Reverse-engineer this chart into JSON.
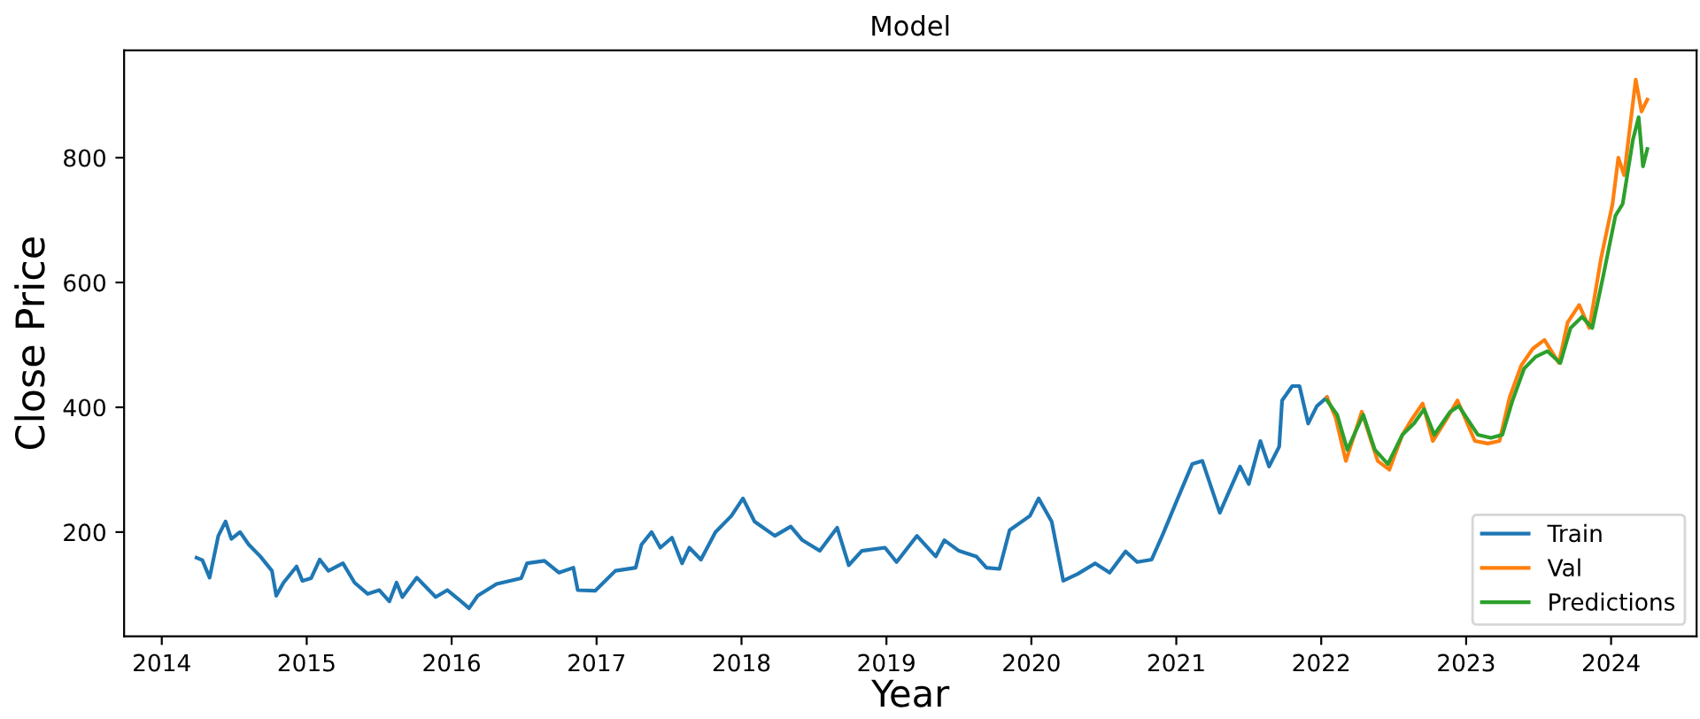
{
  "chart_data": {
    "type": "line",
    "title": "Model",
    "xlabel": "Year",
    "ylabel": "Close Price",
    "xlim": [
      2013.74,
      2024.59
    ],
    "xticks": [
      2014,
      2015,
      2016,
      2017,
      2018,
      2019,
      2020,
      2021,
      2022,
      2023,
      2024
    ],
    "ylim": [
      33,
      972
    ],
    "yticks": [
      200,
      400,
      600,
      800
    ],
    "grid": false,
    "legend": "bottom right",
    "series": [
      {
        "name": "Train",
        "color": "#1f77b4",
        "x": [
          2014.24,
          2014.28,
          2014.33,
          2014.39,
          2014.44,
          2014.48,
          2014.54,
          2014.6,
          2014.68,
          2014.76,
          2014.79,
          2014.84,
          2014.93,
          2014.97,
          2015.03,
          2015.09,
          2015.15,
          2015.25,
          2015.33,
          2015.42,
          2015.5,
          2015.57,
          2015.62,
          2015.66,
          2015.76,
          2015.89,
          2015.97,
          2016.05,
          2016.12,
          2016.18,
          2016.31,
          2016.48,
          2016.52,
          2016.64,
          2016.74,
          2016.84,
          2016.87,
          2016.99,
          2017.13,
          2017.27,
          2017.31,
          2017.38,
          2017.44,
          2017.52,
          2017.59,
          2017.64,
          2017.72,
          2017.82,
          2017.93,
          2018.01,
          2018.09,
          2018.23,
          2018.34,
          2018.42,
          2018.54,
          2018.66,
          2018.74,
          2018.83,
          2018.99,
          2019.07,
          2019.21,
          2019.34,
          2019.4,
          2019.5,
          2019.62,
          2019.69,
          2019.78,
          2019.85,
          2019.99,
          2020.05,
          2020.14,
          2020.22,
          2020.32,
          2020.44,
          2020.54,
          2020.65,
          2020.73,
          2020.83,
          2020.91,
          2021.01,
          2021.11,
          2021.18,
          2021.3,
          2021.44,
          2021.5,
          2021.58,
          2021.64,
          2021.71,
          2021.73,
          2021.8,
          2021.85,
          2021.91,
          2021.97,
          2022.04
        ],
        "values": [
          159,
          155,
          127,
          194,
          217,
          189,
          200,
          180,
          161,
          138,
          98,
          119,
          145,
          122,
          126,
          156,
          138,
          150,
          119,
          101,
          107,
          89,
          119,
          96,
          127,
          96,
          107,
          92,
          78,
          98,
          117,
          126,
          150,
          154,
          135,
          143,
          107,
          106,
          138,
          143,
          180,
          200,
          175,
          191,
          150,
          175,
          156,
          200,
          226,
          254,
          217,
          194,
          209,
          187,
          170,
          207,
          147,
          170,
          175,
          152,
          194,
          161,
          187,
          170,
          161,
          143,
          141,
          203,
          226,
          254,
          217,
          122,
          133,
          150,
          135,
          169,
          152,
          156,
          198,
          254,
          309,
          314,
          231,
          305,
          277,
          346,
          305,
          337,
          411,
          434,
          434,
          374,
          402,
          416
        ]
      },
      {
        "name": "Val",
        "color": "#ff7f0e",
        "x": [
          2022.04,
          2022.1,
          2022.17,
          2022.28,
          2022.35,
          2022.39,
          2022.47,
          2022.56,
          2022.62,
          2022.7,
          2022.77,
          2022.87,
          2022.94,
          2023.06,
          2023.15,
          2023.23,
          2023.3,
          2023.38,
          2023.46,
          2023.54,
          2023.64,
          2023.7,
          2023.78,
          2023.85,
          2023.93,
          2024.01,
          2024.05,
          2024.09,
          2024.17,
          2024.21,
          2024.25
        ],
        "values": [
          416,
          383,
          314,
          393,
          342,
          314,
          300,
          356,
          379,
          406,
          346,
          383,
          411,
          346,
          342,
          346,
          416,
          467,
          494,
          508,
          471,
          536,
          564,
          527,
          638,
          726,
          800,
          772,
          925,
          874,
          893
        ]
      },
      {
        "name": "Predictions",
        "color": "#2ca02c",
        "x": [
          2022.04,
          2022.11,
          2022.18,
          2022.29,
          2022.37,
          2022.46,
          2022.56,
          2022.64,
          2022.71,
          2022.78,
          2022.89,
          2022.95,
          2023.08,
          2023.17,
          2023.25,
          2023.32,
          2023.4,
          2023.48,
          2023.56,
          2023.65,
          2023.72,
          2023.8,
          2023.87,
          2023.95,
          2024.03,
          2024.08,
          2024.15,
          2024.19,
          2024.22,
          2024.25
        ],
        "values": [
          411,
          388,
          332,
          388,
          332,
          309,
          356,
          374,
          397,
          356,
          393,
          402,
          356,
          351,
          356,
          411,
          462,
          481,
          490,
          471,
          527,
          545,
          527,
          615,
          707,
          726,
          828,
          865,
          786,
          814
        ]
      }
    ]
  }
}
